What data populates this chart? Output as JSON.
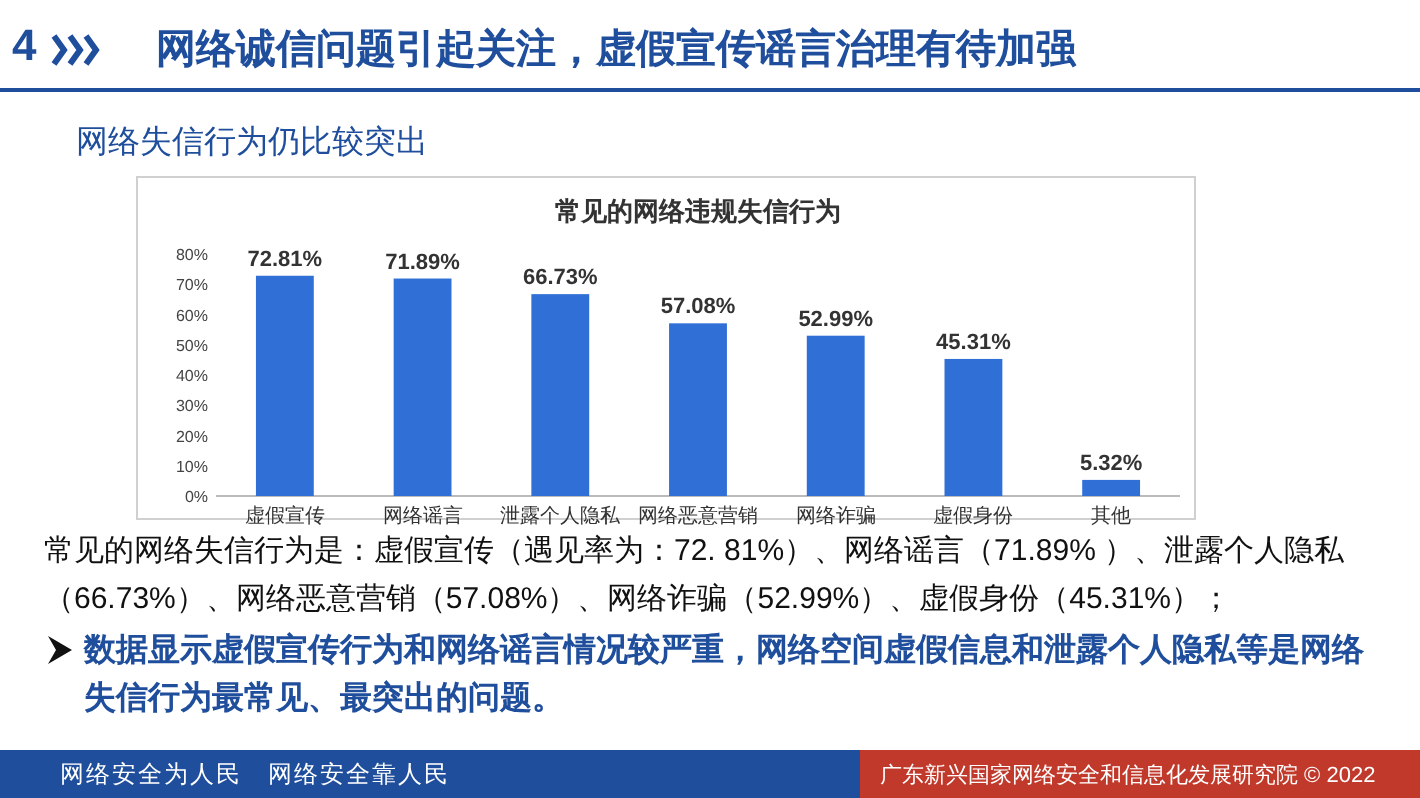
{
  "chart_data": {
    "type": "bar",
    "title": "网络诚信问题引起关注，虚假宣传谣言治理有待加强",
    "subtitle": "网络失信行为仍比较突出",
    "categories": [
      "虚假宣传",
      "网络谣言",
      "泄露个人隐私",
      "网络恶意营销",
      "网络诈骗",
      "虚假身份",
      "其他"
    ],
    "values": [
      72.81,
      71.89,
      66.73,
      57.08,
      52.99,
      45.31,
      5.32
    ],
    "value_labels": [
      "72.81%",
      "71.89%",
      "66.73%",
      "57.08%",
      "52.99%",
      "45.31%",
      "5.32%"
    ],
    "color": "#2f6fd6",
    "ylim": [
      0,
      80
    ],
    "yticks": [
      {
        "value": 0,
        "label": "0%"
      },
      {
        "value": 10,
        "label": "10%"
      },
      {
        "value": 20,
        "label": "20%"
      },
      {
        "value": 30,
        "label": "30%"
      },
      {
        "value": 40,
        "label": "40%"
      },
      {
        "value": 50,
        "label": "50%"
      },
      {
        "value": 60,
        "label": "60%"
      },
      {
        "value": 70,
        "label": "70%"
      },
      {
        "value": 80,
        "label": "80%"
      }
    ],
    "annotations": [
      "4",
      "常见的网络违规失信行为",
      "常见的网络失信行为是：虚假宣传（遇见率为：72. 81%）、网络谣言（71.89% ）、泄露个人隐私（66.73%）、网络恶意营销（57.08%）、网络诈骗（52.99%）、虚假身份（45.31%）；",
      "数据显示虚假宣传行为和网络谣言情况较严重，网络空间虚假信息和泄露个人隐私等是网络失信行为最常见、最突出的问题。",
      "网络安全为人民　网络安全靠人民",
      "广东新兴国家网络安全和信息化发展研究院 © 2022"
    ]
  }
}
